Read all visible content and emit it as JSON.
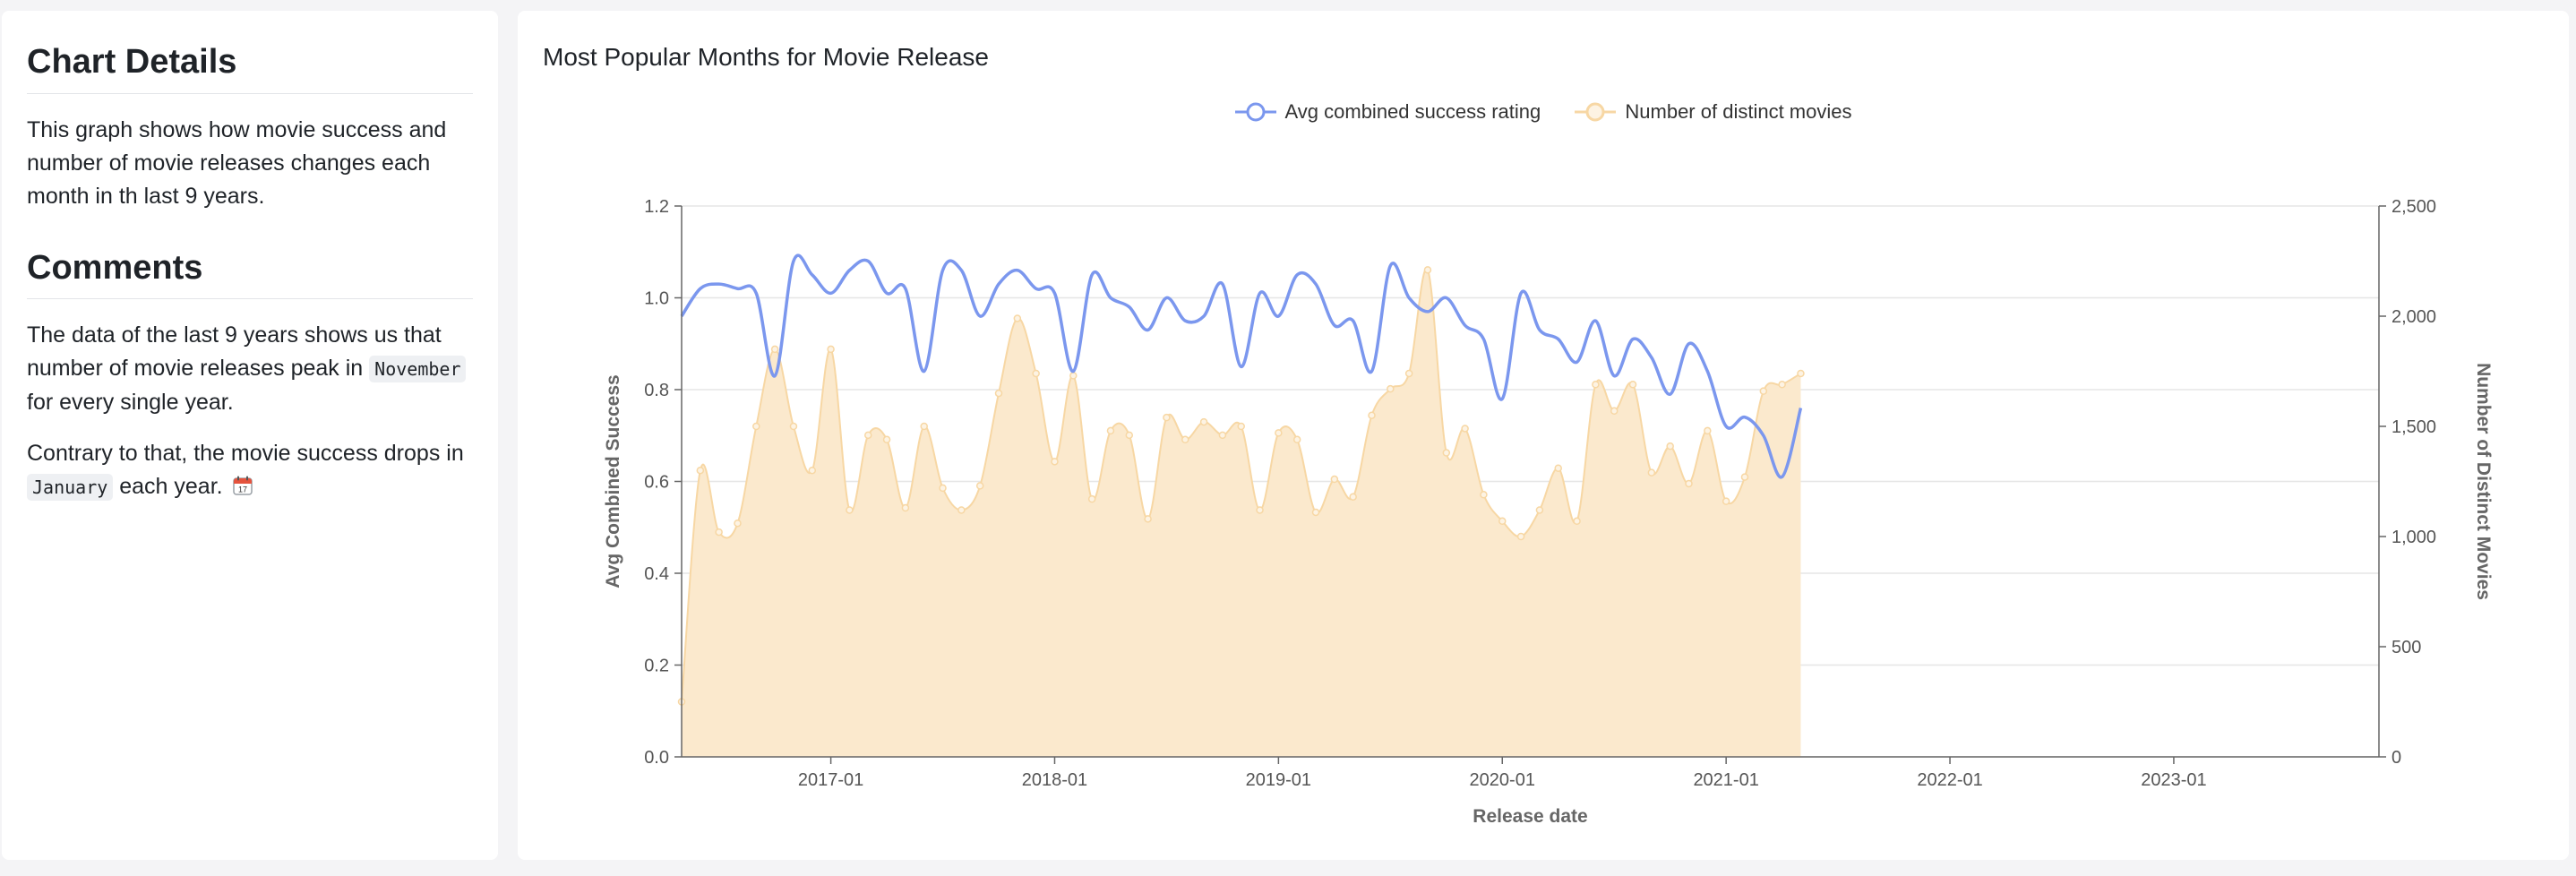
{
  "sidebar": {
    "details_heading": "Chart Details",
    "details_text": "This graph shows how movie success and number of movie releases changes each month in th last 9 years.",
    "comments_heading": "Comments",
    "comment1_pre": "The data of the last 9 years shows us that number of movie releases peak in",
    "comment1_code": "November",
    "comment1_post": "for every single year.",
    "comment2_pre": "Contrary to that, the movie success drops in",
    "comment2_code": "January",
    "comment2_post": "each year.",
    "calendar_icon": "calendar-icon"
  },
  "colors": {
    "success_line": "#7b97ee",
    "movies_fill": "#fbe9cd",
    "movies_stroke": "#f7d7a4"
  },
  "chart_data": {
    "type": "line",
    "title": "Most Popular Months for Movie Release",
    "xlabel": "Release date",
    "ylabel_left": "Avg Combined Success",
    "ylabel_right": "Number of Distinct Movies",
    "x_tick_labels": [
      "2017-01",
      "2018-01",
      "2019-01",
      "2020-01",
      "2021-01",
      "2022-01",
      "2023-01"
    ],
    "x_start": "2016-05",
    "x_end": "2023-12",
    "ylim_left": [
      0,
      1.2
    ],
    "ylim_right": [
      0,
      2500
    ],
    "yticks_left": [
      "0.0",
      "0.2",
      "0.4",
      "0.6",
      "0.8",
      "1.0",
      "1.2"
    ],
    "yticks_right": [
      "0",
      "500",
      "1,000",
      "1,500",
      "2,000",
      "2,500"
    ],
    "grid": true,
    "legend_position": "top",
    "series": [
      {
        "name": "Avg combined success rating",
        "axis": "left",
        "style": "line",
        "values": [
          0.96,
          1.02,
          1.03,
          1.02,
          1.01,
          0.83,
          1.08,
          1.05,
          1.01,
          1.06,
          1.08,
          1.01,
          1.02,
          0.84,
          1.06,
          1.06,
          0.96,
          1.03,
          1.06,
          1.02,
          1.01,
          0.84,
          1.05,
          1.0,
          0.98,
          0.93,
          1.0,
          0.95,
          0.96,
          1.03,
          0.85,
          1.01,
          0.96,
          1.05,
          1.03,
          0.94,
          0.95,
          0.84,
          1.07,
          1.0,
          0.97,
          1.0,
          0.94,
          0.91,
          0.78,
          1.01,
          0.93,
          0.91,
          0.86,
          0.95,
          0.83,
          0.91,
          0.87,
          0.79,
          0.9,
          0.84,
          0.72,
          0.74,
          0.7,
          0.61,
          0.76
        ]
      },
      {
        "name": "Number of distinct movies",
        "axis": "right",
        "style": "area",
        "values": [
          250,
          1300,
          1020,
          1060,
          1500,
          1850,
          1500,
          1300,
          1850,
          1120,
          1460,
          1440,
          1130,
          1500,
          1220,
          1120,
          1230,
          1650,
          1990,
          1740,
          1340,
          1730,
          1170,
          1480,
          1460,
          1080,
          1540,
          1440,
          1520,
          1460,
          1500,
          1120,
          1470,
          1440,
          1110,
          1260,
          1180,
          1550,
          1670,
          1740,
          2210,
          1380,
          1490,
          1190,
          1070,
          1000,
          1120,
          1310,
          1070,
          1690,
          1570,
          1690,
          1290,
          1410,
          1240,
          1480,
          1160,
          1270,
          1660,
          1690,
          1740
        ]
      }
    ]
  }
}
